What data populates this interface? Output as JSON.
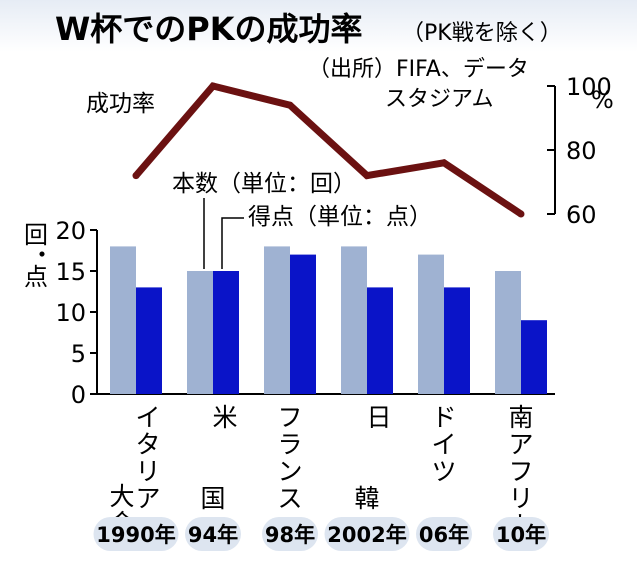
{
  "chart_data": {
    "type": "bar",
    "title": "W杯でのPKの成功率",
    "subtitle": "（PK戦を除く）",
    "source": "（出所）FIFA、データスタジアム",
    "categories": [
      {
        "name_col1": "イタリア",
        "name_col2": "大会",
        "year": "1990年"
      },
      {
        "name_col1": "米",
        "name_col2": "国",
        "year": "94年"
      },
      {
        "name_col1": "フランス",
        "name_col2": "",
        "year": "98年"
      },
      {
        "name_col1": "日",
        "name_col2": "韓",
        "year": "2002年"
      },
      {
        "name_col1": "ドイツ",
        "name_col2": "",
        "year": "06年"
      },
      {
        "name_col1": "南アフリカ",
        "name_col2": "",
        "year": "10年"
      }
    ],
    "bar_series": [
      {
        "name": "本数（単位：回）",
        "color": "#9fb2d2",
        "values": [
          18,
          15,
          18,
          18,
          17,
          15
        ]
      },
      {
        "name": "得点（単位：点）",
        "color": "#0a14c8",
        "values": [
          13,
          15,
          17,
          13,
          13,
          9
        ]
      }
    ],
    "line_series": {
      "name": "成功率",
      "color": "#6b1111",
      "values": [
        72,
        100,
        94,
        72,
        76,
        60
      ]
    },
    "left_axis": {
      "label": "回・点",
      "ylim": [
        0,
        20
      ],
      "ticks": [
        "0",
        "5",
        "10",
        "15",
        "20"
      ]
    },
    "right_axis": {
      "unit": "%",
      "ylim": [
        60,
        100
      ],
      "ticks": [
        "60",
        "80",
        "100"
      ]
    }
  }
}
